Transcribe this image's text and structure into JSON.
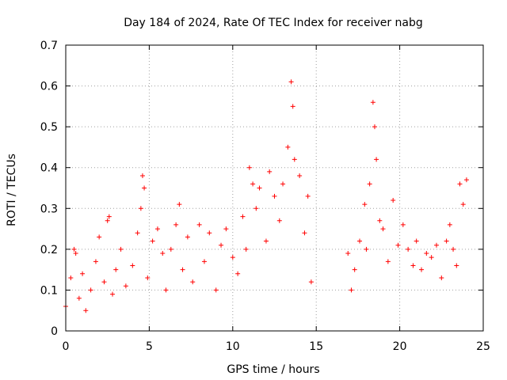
{
  "chart_data": {
    "type": "scatter",
    "title": "Day 184 of 2024, Rate Of TEC Index for receiver nabg",
    "xlabel": "GPS time / hours",
    "ylabel": "ROTI / TECUs",
    "xlim": [
      0,
      25
    ],
    "ylim": [
      0,
      0.7
    ],
    "x_ticks": [
      0,
      5,
      10,
      15,
      20,
      25
    ],
    "y_ticks": [
      0,
      0.1,
      0.2,
      0.3,
      0.4,
      0.5,
      0.6,
      0.7
    ],
    "x_tick_labels": [
      "0",
      "5",
      "10",
      "15",
      "20",
      "25"
    ],
    "y_tick_labels": [
      "0",
      "0.1",
      "0.2",
      "0.3",
      "0.4",
      "0.5",
      "0.6",
      "0.7"
    ],
    "grid": true,
    "marker": "+",
    "color": "#ff0000",
    "data_gap": [
      14.8,
      16.9
    ],
    "series": [
      {
        "x": [
          0.0,
          0.3,
          0.5,
          0.6,
          0.8,
          1.0,
          1.2,
          1.5,
          1.8,
          2.0,
          2.3,
          2.5,
          2.6,
          2.8,
          3.0,
          3.3,
          3.6,
          4.0,
          4.3,
          4.5,
          4.6,
          4.7,
          4.9,
          5.2,
          5.5,
          5.8,
          6.0,
          6.3,
          6.6,
          6.8,
          7.0,
          7.3,
          7.6,
          8.0,
          8.3,
          8.6,
          9.0,
          9.3,
          9.6,
          10.0,
          10.3,
          10.6,
          10.8,
          11.0,
          11.2,
          11.4,
          11.6,
          12.0,
          12.2,
          12.5,
          12.8,
          13.0,
          13.3,
          13.5,
          13.6,
          13.7,
          14.0,
          14.3,
          14.5,
          14.7,
          16.9,
          17.1,
          17.3,
          17.6,
          17.9,
          18.0,
          18.2,
          18.4,
          18.5,
          18.6,
          18.8,
          19.0,
          19.3,
          19.6,
          19.9,
          20.2,
          20.5,
          20.8,
          21.0,
          21.3,
          21.6,
          21.9,
          22.2,
          22.5,
          22.8,
          23.0,
          23.2,
          23.4,
          23.6,
          23.8,
          24.0
        ],
        "y": [
          0.06,
          0.13,
          0.2,
          0.19,
          0.08,
          0.14,
          0.05,
          0.1,
          0.17,
          0.23,
          0.12,
          0.27,
          0.28,
          0.09,
          0.15,
          0.2,
          0.11,
          0.16,
          0.24,
          0.3,
          0.38,
          0.35,
          0.13,
          0.22,
          0.25,
          0.19,
          0.1,
          0.2,
          0.26,
          0.31,
          0.15,
          0.23,
          0.12,
          0.26,
          0.17,
          0.24,
          0.1,
          0.21,
          0.25,
          0.18,
          0.14,
          0.28,
          0.2,
          0.4,
          0.36,
          0.3,
          0.35,
          0.22,
          0.39,
          0.33,
          0.27,
          0.36,
          0.45,
          0.61,
          0.55,
          0.42,
          0.38,
          0.24,
          0.33,
          0.12,
          0.19,
          0.1,
          0.15,
          0.22,
          0.31,
          0.2,
          0.36,
          0.56,
          0.5,
          0.42,
          0.27,
          0.25,
          0.17,
          0.32,
          0.21,
          0.26,
          0.2,
          0.16,
          0.22,
          0.15,
          0.19,
          0.18,
          0.21,
          0.13,
          0.22,
          0.26,
          0.2,
          0.16,
          0.36,
          0.31,
          0.37
        ]
      }
    ]
  }
}
